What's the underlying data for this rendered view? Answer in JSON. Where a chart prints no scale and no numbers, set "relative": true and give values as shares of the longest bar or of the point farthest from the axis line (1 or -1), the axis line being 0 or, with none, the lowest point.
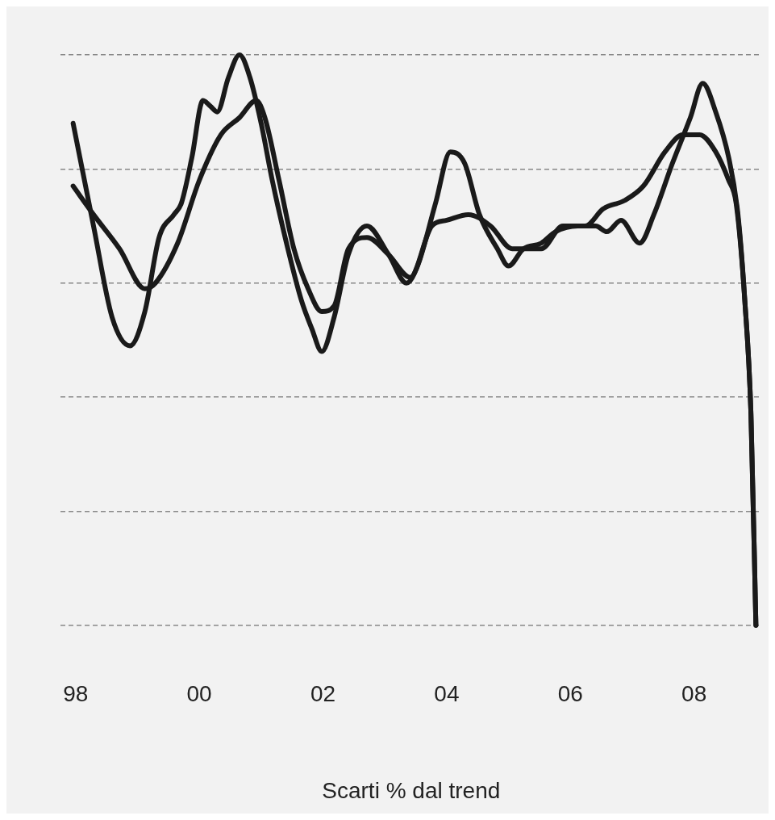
{
  "chart_data": {
    "type": "line",
    "relative": true,
    "xlabel": "Scarti % dal trend",
    "xlim": [
      1997.75,
      2009.1
    ],
    "xticks": [
      {
        "value": 1998,
        "label": "98"
      },
      {
        "value": 2000,
        "label": "00"
      },
      {
        "value": 2002,
        "label": "02"
      },
      {
        "value": 2004,
        "label": "04"
      },
      {
        "value": 2006,
        "label": "06"
      },
      {
        "value": 2008,
        "label": "08"
      }
    ],
    "grid": "y",
    "legend": false,
    "marker": "none",
    "line_style": "solid",
    "series": [
      {
        "color": "#1a1a1a",
        "x": [
          1997.96,
          1998.29,
          1998.59,
          1998.88,
          1999.12,
          1999.35,
          1999.59,
          1999.71,
          1999.88,
          2000.06,
          2000.18,
          2000.29,
          2000.47,
          2000.65,
          2000.82,
          2001.0,
          2001.18,
          2001.41,
          2001.65,
          2001.82,
          2001.98,
          2002.18,
          2002.41,
          2002.71,
          2003.06,
          2003.35,
          2003.53,
          2003.82,
          2004.06,
          2004.29,
          2004.53,
          2004.82,
          2005.0,
          2005.24,
          2005.53,
          2005.76,
          2006.12,
          2006.41,
          2006.59,
          2006.82,
          2007.12,
          2007.35,
          2007.65,
          2007.94,
          2008.14,
          2008.35,
          2008.56,
          2008.71,
          2008.82,
          2008.92,
          2009.0
        ],
        "values": [
          0.88,
          0.7,
          0.54,
          0.49,
          0.55,
          0.68,
          0.72,
          0.74,
          0.82,
          0.92,
          0.91,
          0.9,
          0.96,
          1.0,
          0.96,
          0.88,
          0.78,
          0.67,
          0.57,
          0.52,
          0.48,
          0.54,
          0.65,
          0.7,
          0.65,
          0.6,
          0.63,
          0.74,
          0.83,
          0.81,
          0.72,
          0.66,
          0.63,
          0.66,
          0.67,
          0.69,
          0.7,
          0.7,
          0.69,
          0.71,
          0.67,
          0.72,
          0.81,
          0.89,
          0.95,
          0.9,
          0.82,
          0.72,
          0.57,
          0.37,
          0
        ]
      },
      {
        "color": "#1a1a1a",
        "x": [
          1997.96,
          1998.29,
          1998.71,
          1999.12,
          1999.29,
          1999.65,
          2000.0,
          2000.35,
          2000.65,
          2000.92,
          2001.06,
          2001.29,
          2001.53,
          2001.76,
          2001.98,
          2002.18,
          2002.41,
          2002.71,
          2003.06,
          2003.41,
          2003.76,
          2004.0,
          2004.35,
          2004.71,
          2005.06,
          2005.53,
          2005.88,
          2006.24,
          2006.53,
          2006.88,
          2007.18,
          2007.53,
          2007.82,
          2008.09,
          2008.35,
          2008.56,
          2008.68,
          2008.82,
          2008.92,
          2009.0
        ],
        "values": [
          0.77,
          0.72,
          0.66,
          0.59,
          0.6,
          0.67,
          0.78,
          0.86,
          0.89,
          0.92,
          0.89,
          0.78,
          0.66,
          0.59,
          0.55,
          0.56,
          0.66,
          0.68,
          0.65,
          0.61,
          0.7,
          0.71,
          0.72,
          0.7,
          0.66,
          0.66,
          0.7,
          0.7,
          0.73,
          0.745,
          0.77,
          0.83,
          0.86,
          0.86,
          0.83,
          0.78,
          0.74,
          0.57,
          0.37,
          0
        ]
      }
    ]
  }
}
